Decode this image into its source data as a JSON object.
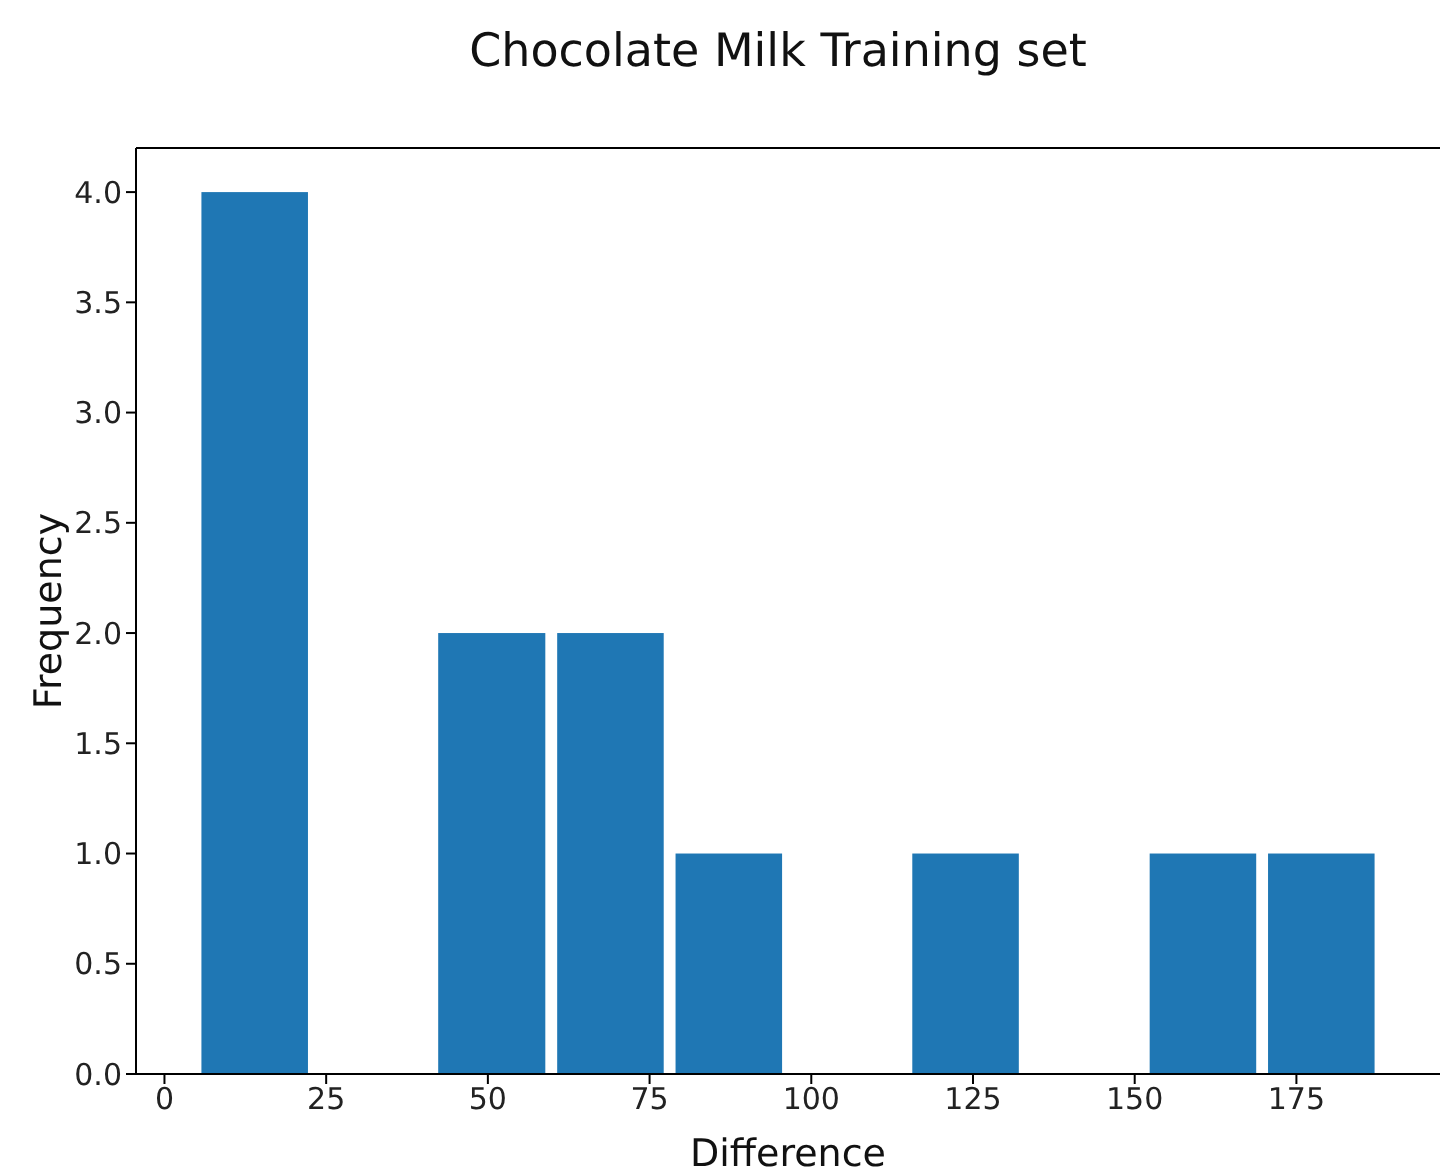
{
  "chart_data": {
    "type": "histogram",
    "title": "Chocolate Milk Training set",
    "xlabel": "Difference",
    "ylabel": "Frequency",
    "bins": [
      4.8,
      23.1,
      41.4,
      59.8,
      78.1,
      96.4,
      114.7,
      133.0,
      151.4,
      169.7,
      188.0
    ],
    "values": [
      4,
      0,
      2,
      2,
      1,
      0,
      1,
      0,
      1,
      1
    ],
    "color": "#1f77b4",
    "xlim": [
      -4.4,
      197.2
    ],
    "xticks": [
      0,
      25,
      50,
      75,
      100,
      125,
      150,
      175
    ],
    "ylim": [
      0,
      4.2
    ],
    "yticks": [
      {
        "value": 0,
        "label": "0.0"
      },
      {
        "value": 0.5,
        "label": "0.5"
      },
      {
        "value": 1,
        "label": "1.0"
      },
      {
        "value": 1.5,
        "label": "1.5"
      },
      {
        "value": 2,
        "label": "2.0"
      },
      {
        "value": 2.5,
        "label": "2.5"
      },
      {
        "value": 3,
        "label": "3.0"
      },
      {
        "value": 3.5,
        "label": "3.5"
      },
      {
        "value": 4,
        "label": "4.0"
      }
    ],
    "grid": false,
    "legend": false
  }
}
